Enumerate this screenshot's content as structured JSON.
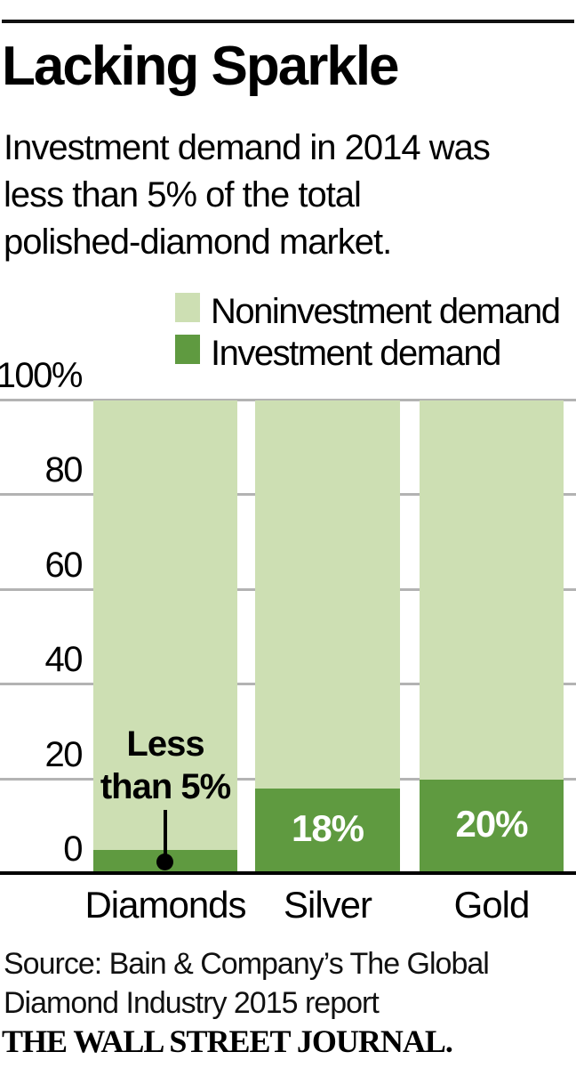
{
  "header": {
    "title": "Lacking Sparkle",
    "subtitle_lines": [
      "Investment demand in 2014 was",
      "less than 5% of the total",
      "polished-diamond market."
    ]
  },
  "legend": {
    "items": [
      {
        "label": "Noninvestment demand",
        "color": "#cddfb3"
      },
      {
        "label": "Investment demand",
        "color": "#5f9a40"
      }
    ]
  },
  "chart_data": {
    "type": "bar",
    "stacked": true,
    "title": "Lacking Sparkle",
    "categories": [
      "Diamonds",
      "Silver",
      "Gold"
    ],
    "series": [
      {
        "name": "Investment demand",
        "color": "#5f9a40",
        "values": [
          5,
          18,
          20
        ]
      },
      {
        "name": "Noninvestment demand",
        "color": "#cddfb3",
        "values": [
          95,
          82,
          80
        ]
      }
    ],
    "value_labels": [
      "",
      "18%",
      "20%"
    ],
    "annotation": {
      "lines": [
        "Less",
        "than 5%"
      ],
      "target_category": "Diamonds",
      "meaning": "Investment demand for diamonds is less than 5%"
    },
    "yticks": [
      "100%",
      "80",
      "60",
      "40",
      "20",
      "0"
    ],
    "ylim": [
      0,
      100
    ],
    "grid": true,
    "gridline_color": "#b3b3b3",
    "legend_position": "top"
  },
  "footer": {
    "source_lines": [
      "Source: Bain & Company’s The Global",
      "Diamond Industry 2015 report"
    ],
    "logo": "THE WALL STREET JOURNAL."
  },
  "colors": {
    "noninvestment_green": "#cddfb3",
    "investment_green": "#5f9a40",
    "gridline_gray": "#b3b3b3",
    "text_black": "#000000"
  }
}
